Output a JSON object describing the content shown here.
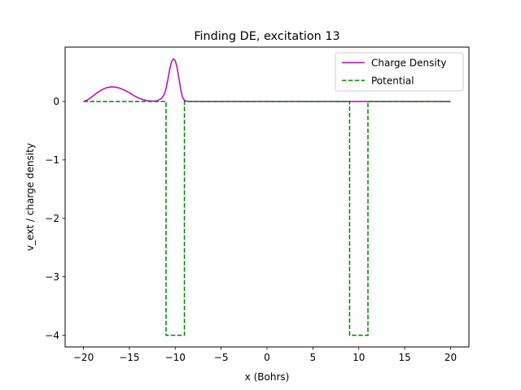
{
  "chart_data": {
    "type": "line",
    "title": "Finding DE, excitation 13",
    "xlabel": "x (Bohrs)",
    "ylabel": "v_ext / charge density",
    "xlim": [
      -22,
      22
    ],
    "ylim": [
      -4.2,
      0.93
    ],
    "x_ticks": [
      -20,
      -15,
      -10,
      -5,
      0,
      5,
      10,
      15,
      20
    ],
    "x_tick_labels": [
      "−20",
      "−15",
      "−10",
      "−5",
      "0",
      "5",
      "10",
      "15",
      "20"
    ],
    "y_ticks": [
      -4,
      -3,
      -2,
      -1,
      0
    ],
    "y_tick_labels": [
      "−4",
      "−3",
      "−2",
      "−1",
      "0"
    ],
    "grid": false,
    "legend_position": "top-right",
    "series": [
      {
        "name": "Charge Density",
        "color": "#bf00bf",
        "style": "solid",
        "x": [
          -20.0,
          -19.5,
          -19.0,
          -18.5,
          -18.0,
          -17.5,
          -17.0,
          -16.5,
          -16.0,
          -15.5,
          -15.0,
          -14.5,
          -14.0,
          -13.5,
          -13.0,
          -12.5,
          -12.0,
          -11.5,
          -11.2,
          -11.0,
          -10.8,
          -10.6,
          -10.4,
          -10.2,
          -10.0,
          -9.8,
          -9.6,
          -9.4,
          -9.2,
          -9.0,
          -8.8,
          -8.5,
          -8.0,
          -5.0,
          0.0,
          5.0,
          10.0,
          15.0,
          20.0
        ],
        "y": [
          0.0,
          0.03,
          0.09,
          0.15,
          0.2,
          0.235,
          0.25,
          0.245,
          0.225,
          0.19,
          0.15,
          0.1,
          0.06,
          0.03,
          0.012,
          0.005,
          0.01,
          0.05,
          0.12,
          0.22,
          0.38,
          0.55,
          0.68,
          0.73,
          0.7,
          0.58,
          0.4,
          0.2,
          0.07,
          0.02,
          0.005,
          0.0,
          0.0,
          0.0,
          0.0,
          0.0,
          0.0,
          0.0,
          0.0
        ]
      },
      {
        "name": "Potential",
        "color": "#008000",
        "style": "dashed",
        "x": [
          -20.0,
          -11.0,
          -11.0,
          -9.0,
          -9.0,
          9.0,
          9.0,
          11.0,
          11.0,
          20.0
        ],
        "y": [
          0,
          0,
          -4,
          -4,
          0,
          0,
          -4,
          -4,
          0,
          0
        ]
      }
    ]
  }
}
